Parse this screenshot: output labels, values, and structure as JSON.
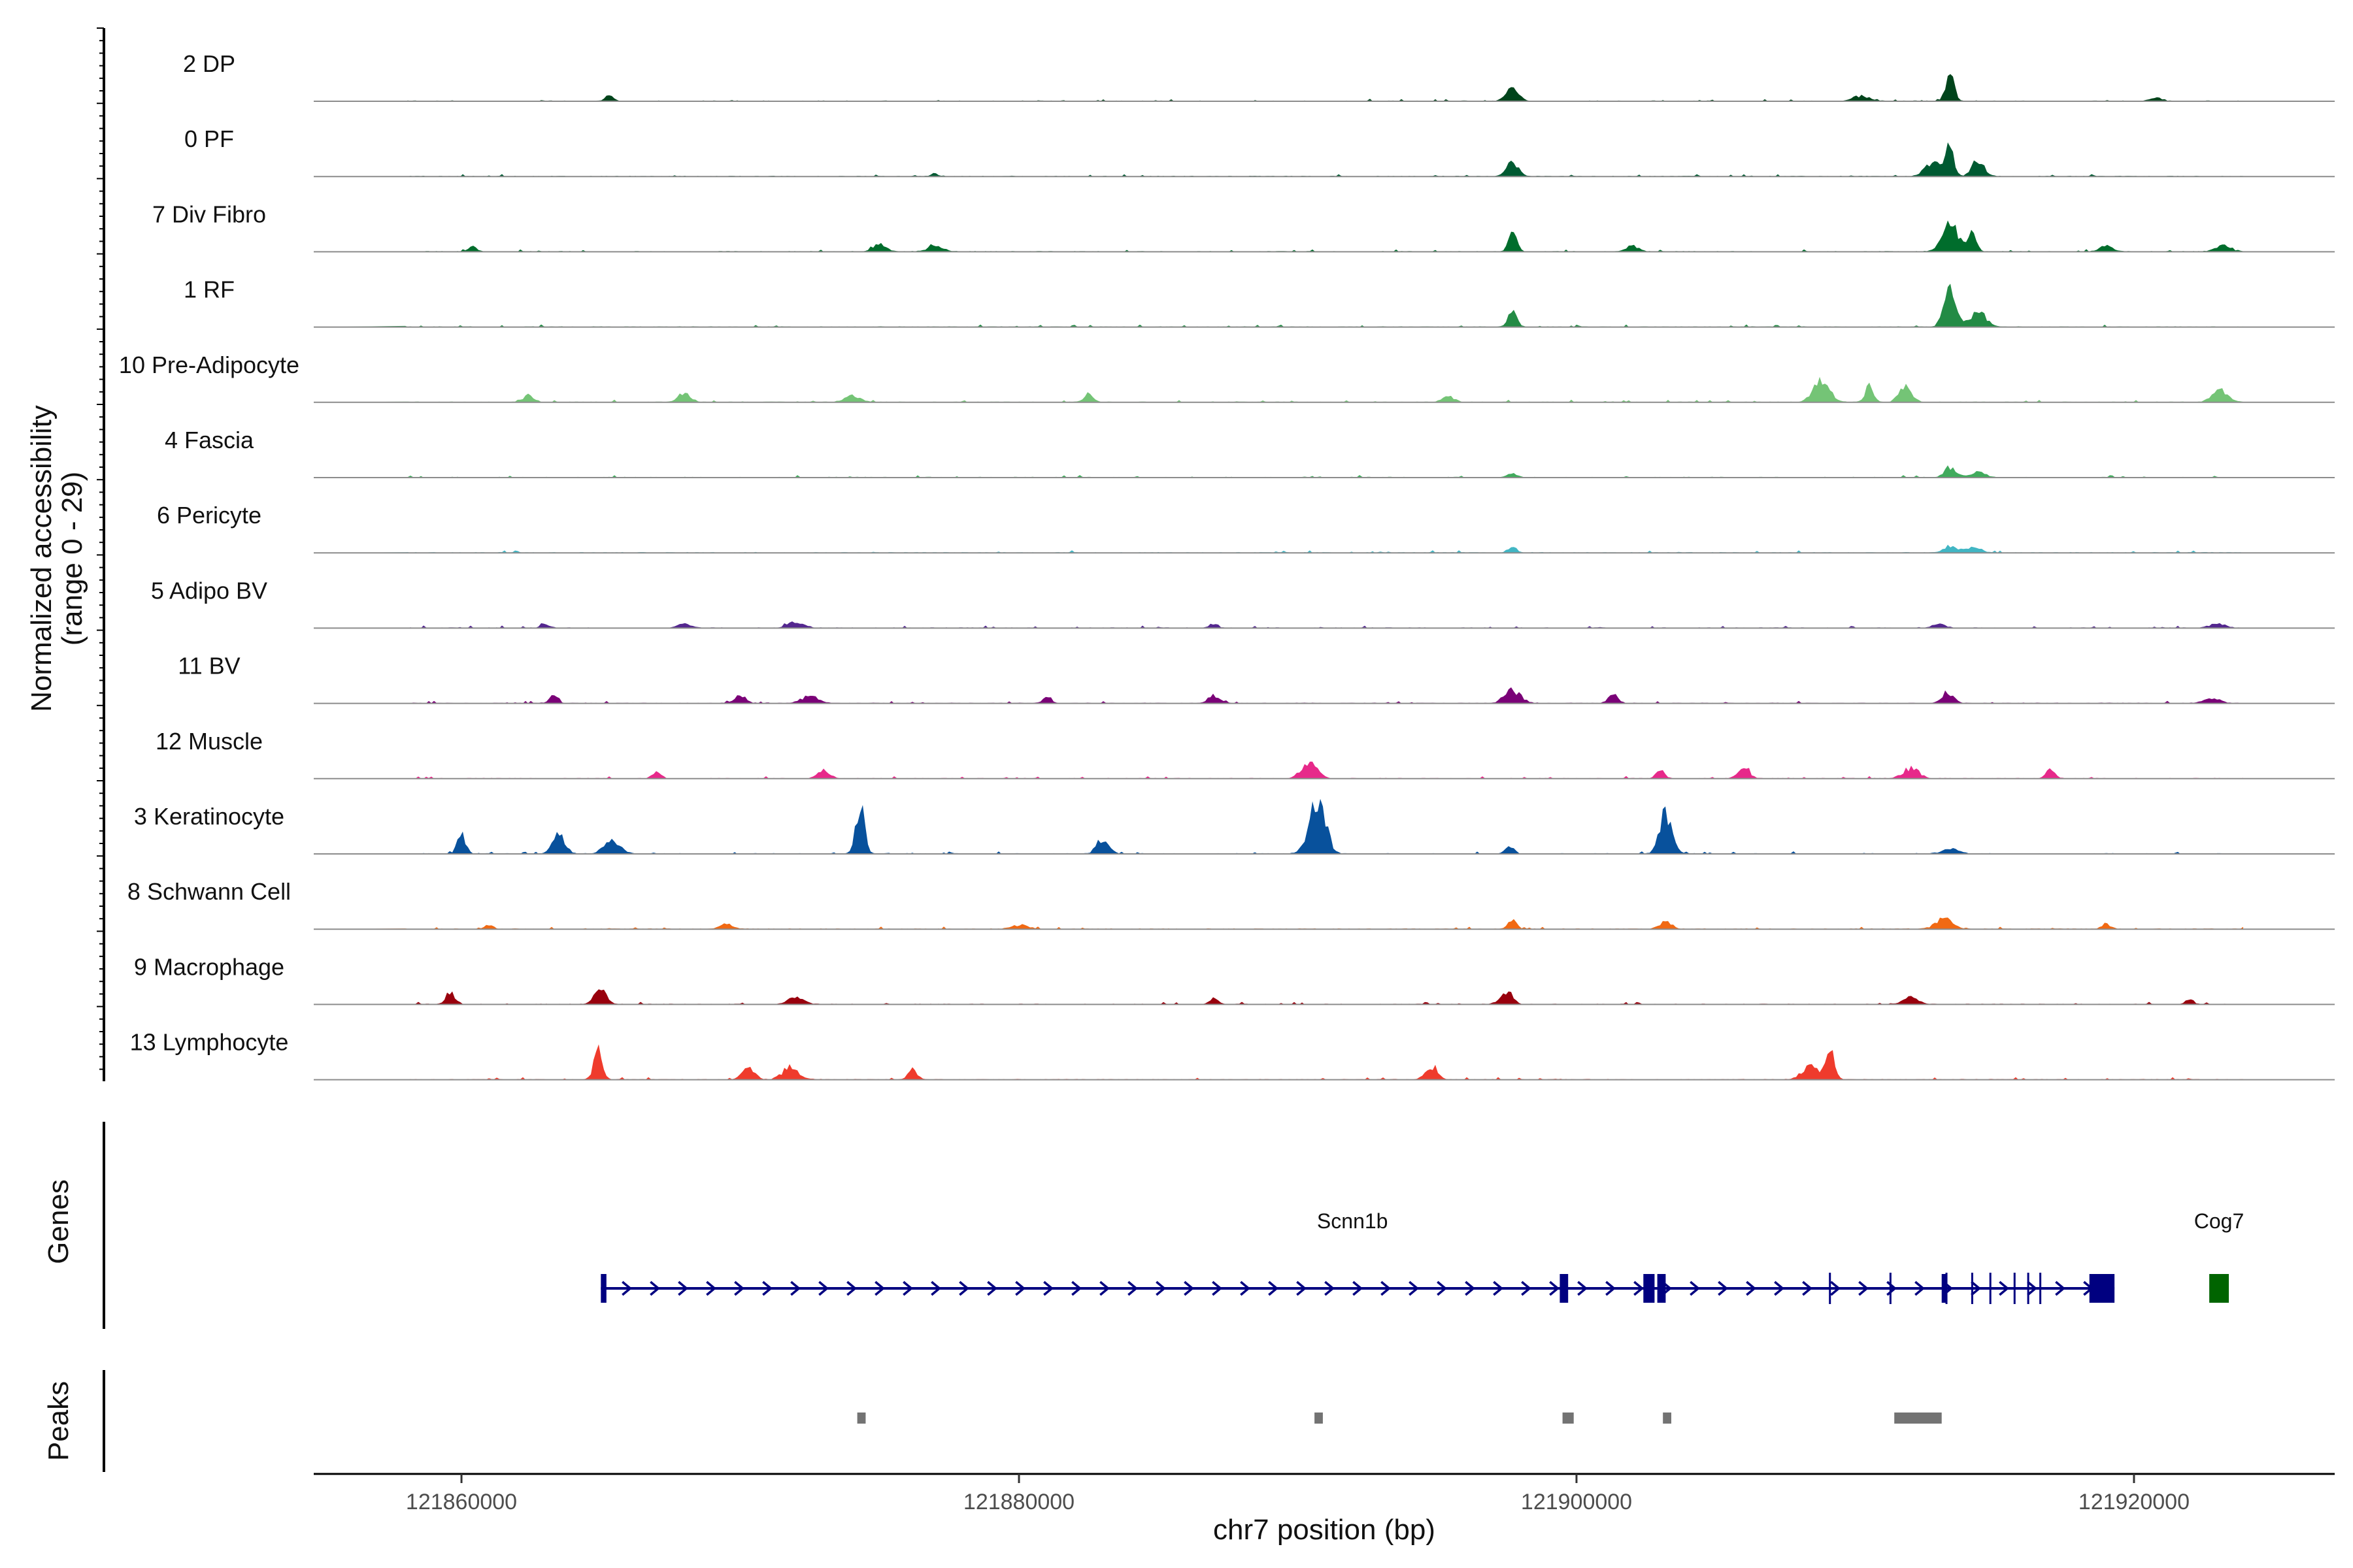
{
  "chart_data": {
    "type": "area",
    "ylabel": "Normalized accessibility",
    "ylabel_range": "(range 0 - 29)",
    "xlabel": "chr7 position (bp)",
    "xlim": [
      121854700,
      121927200
    ],
    "x_ticks": [
      121860000,
      121880000,
      121900000,
      121920000
    ],
    "x_tick_labels": [
      "121860000",
      "121880000",
      "121900000",
      "121920000"
    ],
    "ylim": [
      0,
      29
    ],
    "tracks": [
      {
        "name": "2 DP",
        "color": "#00441b",
        "peaks": [
          [
            121865300,
            0.1
          ],
          [
            121897700,
            0.28
          ],
          [
            121910200,
            0.1
          ],
          [
            121913400,
            0.55
          ],
          [
            121920800,
            0.06
          ]
        ]
      },
      {
        "name": "0 PF",
        "color": "#005a32",
        "peaks": [
          [
            121877000,
            0.05
          ],
          [
            121897700,
            0.3
          ],
          [
            121912800,
            0.3
          ],
          [
            121913400,
            0.55
          ],
          [
            121914400,
            0.3
          ]
        ]
      },
      {
        "name": "7 Div Fibro",
        "color": "#006d2c",
        "peaks": [
          [
            121860400,
            0.1
          ],
          [
            121875000,
            0.18
          ],
          [
            121877000,
            0.12
          ],
          [
            121897700,
            0.4
          ],
          [
            121902000,
            0.12
          ],
          [
            121913400,
            0.55
          ],
          [
            121914200,
            0.35
          ],
          [
            121919000,
            0.12
          ],
          [
            121923200,
            0.12
          ]
        ]
      },
      {
        "name": "1 RF",
        "color": "#238b45",
        "peaks": [
          [
            121897700,
            0.3
          ],
          [
            121913400,
            0.7
          ],
          [
            121914400,
            0.3
          ]
        ]
      },
      {
        "name": "10 Pre-Adipocyte",
        "color": "#74c476",
        "peaks": [
          [
            121862400,
            0.2
          ],
          [
            121868000,
            0.18
          ],
          [
            121874000,
            0.12
          ],
          [
            121882500,
            0.2
          ],
          [
            121895400,
            0.12
          ],
          [
            121908800,
            0.45
          ],
          [
            121910500,
            0.3
          ],
          [
            121911800,
            0.32
          ],
          [
            121923100,
            0.22
          ]
        ]
      },
      {
        "name": "4 Fascia",
        "color": "#41ab5d",
        "peaks": [
          [
            121897700,
            0.1
          ],
          [
            121913400,
            0.2
          ],
          [
            121914400,
            0.1
          ]
        ]
      },
      {
        "name": "6 Pericyte",
        "color": "#41b6c4",
        "peaks": [
          [
            121897700,
            0.12
          ],
          [
            121913400,
            0.14
          ],
          [
            121914200,
            0.1
          ]
        ]
      },
      {
        "name": "5 Adipo BV",
        "color": "#54278f",
        "peaks": [
          [
            121863000,
            0.08
          ],
          [
            121868000,
            0.08
          ],
          [
            121872000,
            0.12
          ],
          [
            121887000,
            0.08
          ],
          [
            121913000,
            0.08
          ],
          [
            121923000,
            0.08
          ]
        ]
      },
      {
        "name": "11 BV",
        "color": "#7a0177",
        "peaks": [
          [
            121863300,
            0.15
          ],
          [
            121870000,
            0.15
          ],
          [
            121872500,
            0.15
          ],
          [
            121881000,
            0.15
          ],
          [
            121887000,
            0.15
          ],
          [
            121897700,
            0.25
          ],
          [
            121901300,
            0.2
          ],
          [
            121913300,
            0.2
          ],
          [
            121922800,
            0.1
          ]
        ]
      },
      {
        "name": "12 Muscle",
        "color": "#e7298a",
        "peaks": [
          [
            121867000,
            0.12
          ],
          [
            121873000,
            0.15
          ],
          [
            121890400,
            0.3
          ],
          [
            121903000,
            0.15
          ],
          [
            121906000,
            0.2
          ],
          [
            121912000,
            0.2
          ],
          [
            121917000,
            0.18
          ]
        ]
      },
      {
        "name": "3 Keratinocyte",
        "color": "#08519c",
        "peaks": [
          [
            121860000,
            0.35
          ],
          [
            121863500,
            0.4
          ],
          [
            121865400,
            0.25
          ],
          [
            121874300,
            1.0
          ],
          [
            121883000,
            0.3
          ],
          [
            121890700,
            1.1
          ],
          [
            121897600,
            0.15
          ],
          [
            121903200,
            0.8
          ],
          [
            121913400,
            0.1
          ]
        ]
      },
      {
        "name": "8 Schwann Cell",
        "color": "#f16913",
        "peaks": [
          [
            121861000,
            0.08
          ],
          [
            121869500,
            0.1
          ],
          [
            121880000,
            0.08
          ],
          [
            121897700,
            0.2
          ],
          [
            121903200,
            0.15
          ],
          [
            121913200,
            0.22
          ],
          [
            121919000,
            0.1
          ]
        ]
      },
      {
        "name": "9 Macrophage",
        "color": "#99000d",
        "peaks": [
          [
            121859600,
            0.25
          ],
          [
            121865000,
            0.3
          ],
          [
            121872000,
            0.15
          ],
          [
            121887000,
            0.15
          ],
          [
            121897500,
            0.22
          ],
          [
            121912000,
            0.15
          ],
          [
            121922000,
            0.1
          ]
        ]
      },
      {
        "name": "13 Lymphocyte",
        "color": "#ef3b2c",
        "peaks": [
          [
            121864900,
            0.6
          ],
          [
            121870300,
            0.25
          ],
          [
            121871800,
            0.25
          ],
          [
            121876200,
            0.22
          ],
          [
            121894800,
            0.25
          ],
          [
            121908400,
            0.3
          ],
          [
            121909100,
            0.62
          ]
        ]
      }
    ],
    "genes_label": "Genes",
    "genes": [
      {
        "name": "Scnn1b",
        "start": 121865000,
        "end": 121919300,
        "strand": "+",
        "color": "#000080",
        "exons": [
          [
            121865000,
            121865200
          ],
          [
            121899400,
            121899700
          ],
          [
            121902400,
            121902800
          ],
          [
            121902900,
            121903200
          ],
          [
            121913100,
            121913300
          ],
          [
            121918400,
            121919300
          ]
        ]
      },
      {
        "name": "Cog7",
        "start": 121922700,
        "end": 121923400,
        "strand": "+",
        "color": "#006400",
        "exons": [
          [
            121922700,
            121923400
          ]
        ]
      }
    ],
    "peaks_label": "Peaks",
    "peak_regions": [
      [
        121874200,
        121874500
      ],
      [
        121890600,
        121890900
      ],
      [
        121899500,
        121899900
      ],
      [
        121903100,
        121903400
      ],
      [
        121911400,
        121913100
      ]
    ]
  }
}
